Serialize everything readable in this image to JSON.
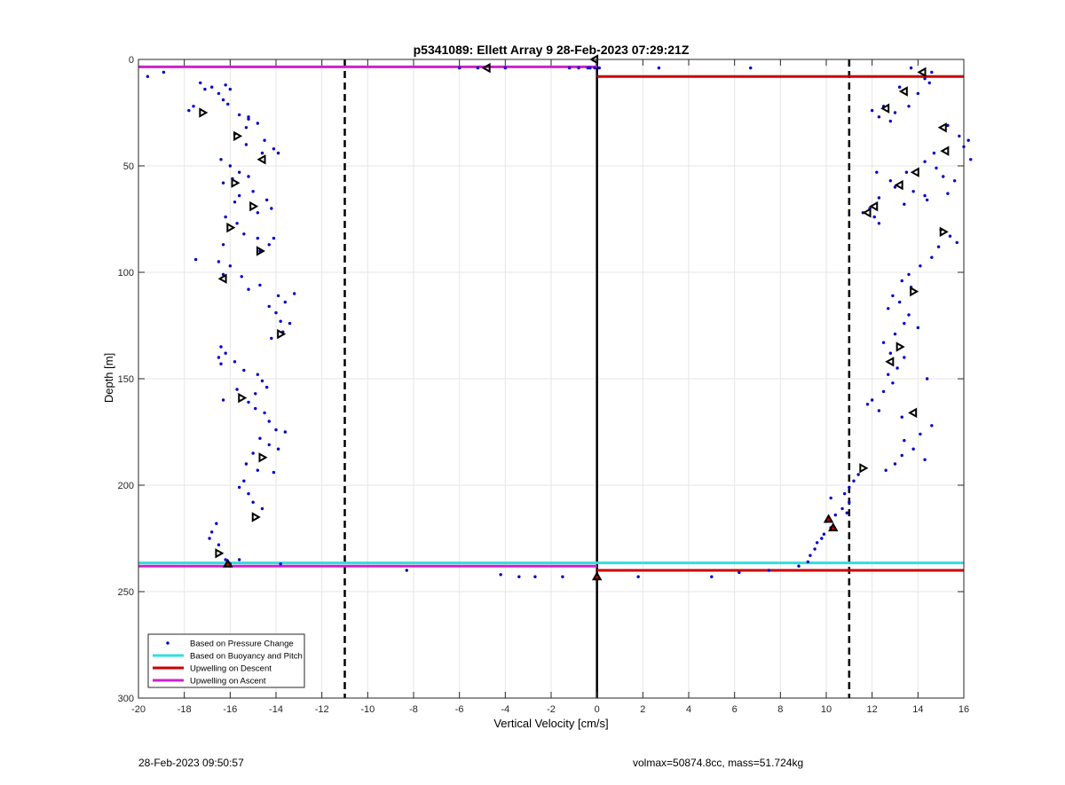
{
  "footer": {
    "timestamp": "28-Feb-2023 09:50:57",
    "specs": "volmax=50874.8cc, mass=51.724kg"
  },
  "chart_data": {
    "type": "scatter",
    "title": "p5341089: Ellett Array 9 28-Feb-2023 07:29:21Z",
    "xlabel": "Vertical Velocity [cm/s]",
    "ylabel": "Depth [m]",
    "xlim": [
      -20,
      16
    ],
    "ylim": [
      0,
      300
    ],
    "y_reversed": true,
    "xticks": [
      -20,
      -18,
      -16,
      -14,
      -12,
      -10,
      -8,
      -6,
      -4,
      -2,
      0,
      2,
      4,
      6,
      8,
      10,
      12,
      14,
      16
    ],
    "yticks": [
      0,
      50,
      100,
      150,
      200,
      250,
      300
    ],
    "grid": true,
    "legend_position": "bottom-left",
    "legend": [
      {
        "label": "Based on Pressure Change",
        "style": "dot",
        "color": "#0000cc"
      },
      {
        "label": "Based on Buoyancy and Pitch",
        "style": "line",
        "color": "#33dddd"
      },
      {
        "label": "Upwelling on Descent",
        "style": "line",
        "color": "#cc0000"
      },
      {
        "label": "Upwelling on Ascent",
        "style": "line",
        "color": "#cc22cc"
      }
    ],
    "reference_lines": [
      {
        "orientation": "vertical",
        "x": -11,
        "style": "dashed",
        "color": "#000000"
      },
      {
        "orientation": "vertical",
        "x": 11,
        "style": "dashed",
        "color": "#000000"
      },
      {
        "orientation": "vertical",
        "x": 0,
        "style": "solid",
        "color": "#000000"
      }
    ],
    "series": [
      {
        "name": "Based on Pressure Change",
        "kind": "points",
        "color": "#0000cc",
        "points": [
          [
            -19.6,
            8
          ],
          [
            -18.9,
            6
          ],
          [
            -17.3,
            11
          ],
          [
            -17.1,
            14
          ],
          [
            -17.6,
            22
          ],
          [
            -17.8,
            24
          ],
          [
            -16.8,
            13
          ],
          [
            -16.5,
            16
          ],
          [
            -16.2,
            12
          ],
          [
            -16.0,
            14
          ],
          [
            -16.3,
            19
          ],
          [
            -16.1,
            21
          ],
          [
            -15.6,
            26
          ],
          [
            -15.2,
            28
          ],
          [
            -15.3,
            32
          ],
          [
            -15.8,
            35
          ],
          [
            -14.8,
            30
          ],
          [
            -15.2,
            27
          ],
          [
            -14.5,
            38
          ],
          [
            -14.1,
            42
          ],
          [
            -13.9,
            44
          ],
          [
            -14.6,
            44
          ],
          [
            -15.3,
            40
          ],
          [
            -16.4,
            47
          ],
          [
            -16.0,
            50
          ],
          [
            -15.6,
            53
          ],
          [
            -15.9,
            56
          ],
          [
            -16.3,
            58
          ],
          [
            -15.2,
            55
          ],
          [
            -15.0,
            62
          ],
          [
            -15.6,
            64
          ],
          [
            -15.8,
            67
          ],
          [
            -14.4,
            66
          ],
          [
            -14.2,
            70
          ],
          [
            -14.8,
            72
          ],
          [
            -16.2,
            74
          ],
          [
            -15.7,
            77
          ],
          [
            -15.4,
            82
          ],
          [
            -14.8,
            84
          ],
          [
            -14.3,
            87
          ],
          [
            -14.1,
            84
          ],
          [
            -14.7,
            90
          ],
          [
            -16.3,
            87
          ],
          [
            -17.5,
            94
          ],
          [
            -16.5,
            95
          ],
          [
            -16.0,
            97
          ],
          [
            -16.3,
            101
          ],
          [
            -15.5,
            102
          ],
          [
            -14.7,
            106
          ],
          [
            -15.2,
            108
          ],
          [
            -13.9,
            111
          ],
          [
            -13.2,
            110
          ],
          [
            -13.6,
            114
          ],
          [
            -14.3,
            116
          ],
          [
            -14.0,
            119
          ],
          [
            -13.8,
            123
          ],
          [
            -13.4,
            124
          ],
          [
            -13.7,
            128
          ],
          [
            -14.2,
            131
          ],
          [
            -16.4,
            135
          ],
          [
            -16.2,
            138
          ],
          [
            -16.5,
            140
          ],
          [
            -16.4,
            143
          ],
          [
            -15.8,
            142
          ],
          [
            -15.4,
            146
          ],
          [
            -14.8,
            148
          ],
          [
            -14.6,
            151
          ],
          [
            -14.4,
            154
          ],
          [
            -14.9,
            157
          ],
          [
            -15.7,
            155
          ],
          [
            -16.3,
            160
          ],
          [
            -15.2,
            161
          ],
          [
            -14.9,
            164
          ],
          [
            -14.5,
            166
          ],
          [
            -14.3,
            170
          ],
          [
            -14.0,
            174
          ],
          [
            -13.6,
            175
          ],
          [
            -14.7,
            178
          ],
          [
            -14.3,
            181
          ],
          [
            -13.9,
            183
          ],
          [
            -15.0,
            185
          ],
          [
            -15.3,
            190
          ],
          [
            -14.8,
            193
          ],
          [
            -14.1,
            194
          ],
          [
            -15.4,
            198
          ],
          [
            -15.6,
            201
          ],
          [
            -15.2,
            204
          ],
          [
            -15.0,
            208
          ],
          [
            -14.6,
            211
          ],
          [
            -16.6,
            218
          ],
          [
            -16.8,
            222
          ],
          [
            -16.9,
            225
          ],
          [
            -16.5,
            228
          ],
          [
            -16.2,
            235
          ],
          [
            -15.6,
            235
          ],
          [
            -16.0,
            237
          ],
          [
            -13.8,
            237
          ],
          [
            -8.3,
            240
          ],
          [
            -4.2,
            242
          ],
          [
            -3.4,
            243
          ],
          [
            -2.7,
            243
          ],
          [
            -1.5,
            243
          ],
          [
            1.8,
            243
          ],
          [
            5.0,
            243
          ],
          [
            6.2,
            241
          ],
          [
            7.5,
            240
          ],
          [
            -0.3,
            4
          ],
          [
            0.1,
            4
          ],
          [
            2.7,
            4
          ],
          [
            6.7,
            4
          ],
          [
            -4.0,
            4
          ],
          [
            -5.2,
            4
          ],
          [
            -6.0,
            4
          ],
          [
            -1.2,
            4
          ],
          [
            -0.8,
            4
          ],
          [
            -0.4,
            4
          ],
          [
            -0.1,
            4
          ],
          [
            13.7,
            4
          ],
          [
            14.6,
            6
          ],
          [
            14.3,
            9
          ],
          [
            14.5,
            11
          ],
          [
            13.2,
            13
          ],
          [
            14.0,
            16
          ],
          [
            12.5,
            22
          ],
          [
            12.0,
            24
          ],
          [
            12.3,
            27
          ],
          [
            12.8,
            29
          ],
          [
            13.0,
            25
          ],
          [
            13.6,
            22
          ],
          [
            15.3,
            31
          ],
          [
            15.8,
            36
          ],
          [
            16.2,
            38
          ],
          [
            16.0,
            41
          ],
          [
            16.3,
            47
          ],
          [
            14.7,
            44
          ],
          [
            14.3,
            48
          ],
          [
            14.8,
            51
          ],
          [
            13.5,
            53
          ],
          [
            12.2,
            53
          ],
          [
            12.8,
            57
          ],
          [
            13.0,
            60
          ],
          [
            13.8,
            62
          ],
          [
            14.3,
            64
          ],
          [
            12.3,
            65
          ],
          [
            11.9,
            70
          ],
          [
            12.1,
            74
          ],
          [
            12.3,
            77
          ],
          [
            11.6,
            72
          ],
          [
            13.4,
            68
          ],
          [
            14.4,
            66
          ],
          [
            15.3,
            63
          ],
          [
            15.6,
            57
          ],
          [
            15.1,
            55
          ],
          [
            15.0,
            80
          ],
          [
            15.4,
            83
          ],
          [
            15.7,
            86
          ],
          [
            14.9,
            88
          ],
          [
            14.6,
            93
          ],
          [
            14.1,
            97
          ],
          [
            13.6,
            101
          ],
          [
            13.3,
            104
          ],
          [
            13.7,
            107
          ],
          [
            12.9,
            111
          ],
          [
            13.2,
            114
          ],
          [
            12.7,
            117
          ],
          [
            13.6,
            120
          ],
          [
            13.4,
            124
          ],
          [
            14.0,
            126
          ],
          [
            13.0,
            129
          ],
          [
            12.5,
            133
          ],
          [
            12.8,
            138
          ],
          [
            13.4,
            140
          ],
          [
            13.1,
            145
          ],
          [
            12.7,
            148
          ],
          [
            12.9,
            152
          ],
          [
            12.5,
            156
          ],
          [
            12.0,
            160
          ],
          [
            11.8,
            162
          ],
          [
            12.3,
            165
          ],
          [
            13.3,
            168
          ],
          [
            14.6,
            172
          ],
          [
            14.1,
            176
          ],
          [
            13.4,
            179
          ],
          [
            13.8,
            183
          ],
          [
            13.3,
            186
          ],
          [
            13.0,
            190
          ],
          [
            12.6,
            193
          ],
          [
            14.3,
            188
          ],
          [
            14.4,
            150
          ],
          [
            11.4,
            195
          ],
          [
            11.2,
            198
          ],
          [
            11.0,
            201
          ],
          [
            10.8,
            204
          ],
          [
            11.0,
            208
          ],
          [
            10.7,
            211
          ],
          [
            10.4,
            214
          ],
          [
            10.0,
            217
          ],
          [
            10.2,
            220
          ],
          [
            9.9,
            223
          ],
          [
            9.6,
            227
          ],
          [
            9.5,
            230
          ],
          [
            9.3,
            233
          ],
          [
            9.2,
            236
          ],
          [
            8.8,
            238
          ],
          [
            10.2,
            206
          ],
          [
            10.9,
            213
          ],
          [
            9.8,
            225
          ]
        ]
      },
      {
        "name": "Based on Buoyancy and Pitch",
        "kind": "segments",
        "color": "#33dddd",
        "segments": [
          [
            [
              -20,
              236.5
            ],
            [
              16,
              236.5
            ]
          ]
        ]
      },
      {
        "name": "Upwelling on Descent",
        "kind": "segments",
        "color": "#cc0000",
        "segments": [
          [
            [
              0,
              8
            ],
            [
              16,
              8
            ]
          ],
          [
            [
              0,
              240
            ],
            [
              16,
              240
            ]
          ]
        ]
      },
      {
        "name": "Upwelling on Ascent",
        "kind": "segments",
        "color": "#cc22cc",
        "segments": [
          [
            [
              -20,
              3.5
            ],
            [
              0,
              3.5
            ]
          ],
          [
            [
              -20,
              238
            ],
            [
              0,
              238
            ]
          ]
        ]
      },
      {
        "kind": "markers",
        "marker": "triangle-right",
        "color": "#000000",
        "points": [
          [
            -17.2,
            25
          ],
          [
            -15.7,
            36
          ],
          [
            -16.0,
            79
          ],
          [
            -15.8,
            58
          ],
          [
            -15.0,
            69
          ],
          [
            -14.7,
            90
          ],
          [
            -15.5,
            159
          ],
          [
            -14.6,
            187
          ],
          [
            -13.8,
            129
          ],
          [
            -14.9,
            215
          ],
          [
            -16.5,
            232
          ],
          [
            15.1,
            81
          ],
          [
            13.8,
            109
          ],
          [
            11.6,
            192
          ],
          [
            13.2,
            135
          ]
        ]
      },
      {
        "kind": "markers",
        "marker": "triangle-left",
        "color": "#000000",
        "points": [
          [
            -4.8,
            4
          ],
          [
            -0.1,
            0
          ],
          [
            -14.6,
            47
          ],
          [
            -16.3,
            103
          ],
          [
            14.2,
            6
          ],
          [
            13.4,
            15
          ],
          [
            12.6,
            23
          ],
          [
            15.1,
            32
          ],
          [
            15.2,
            43
          ],
          [
            13.9,
            53
          ],
          [
            13.2,
            59
          ],
          [
            12.1,
            69
          ],
          [
            11.8,
            72
          ],
          [
            12.8,
            142
          ],
          [
            13.8,
            166
          ]
        ]
      },
      {
        "kind": "markers",
        "marker": "triangle-outline-red",
        "color": "#cc0000",
        "points": [
          [
            -16.1,
            237
          ],
          [
            0.0,
            243
          ],
          [
            10.1,
            216
          ],
          [
            10.3,
            220
          ]
        ]
      }
    ]
  }
}
